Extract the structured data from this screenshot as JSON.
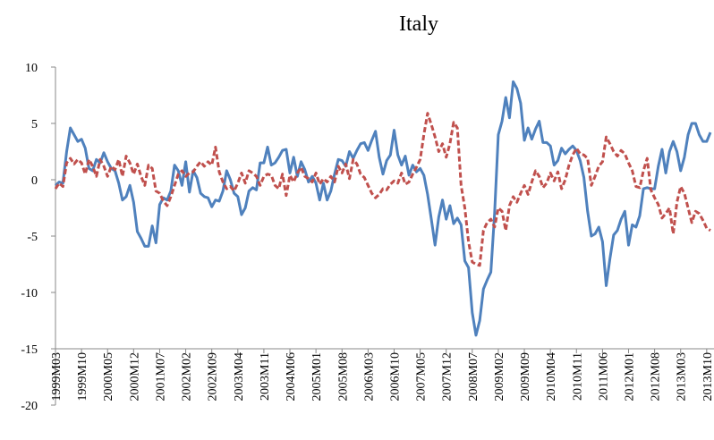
{
  "chart_data": {
    "type": "line",
    "title": "Italy",
    "categories": [
      "1999M03",
      null,
      null,
      null,
      null,
      null,
      null,
      "1999M10",
      null,
      null,
      null,
      null,
      null,
      null,
      "2000M05",
      null,
      null,
      null,
      null,
      null,
      null,
      "2000M12",
      null,
      null,
      null,
      null,
      null,
      null,
      "2001M07",
      null,
      null,
      null,
      null,
      null,
      null,
      "2002M02",
      null,
      null,
      null,
      null,
      null,
      null,
      "2002M09",
      null,
      null,
      null,
      null,
      null,
      null,
      "2003M04",
      null,
      null,
      null,
      null,
      null,
      null,
      "2003M11",
      null,
      null,
      null,
      null,
      null,
      null,
      "2004M06",
      null,
      null,
      null,
      null,
      null,
      null,
      "2005M01",
      null,
      null,
      null,
      null,
      null,
      null,
      "2005M08",
      null,
      null,
      null,
      null,
      null,
      null,
      "2006M03",
      null,
      null,
      null,
      null,
      null,
      null,
      "2006M10",
      null,
      null,
      null,
      null,
      null,
      null,
      "2007M05",
      null,
      null,
      null,
      null,
      null,
      null,
      "2007M12",
      null,
      null,
      null,
      null,
      null,
      null,
      "2008M07",
      null,
      null,
      null,
      null,
      null,
      null,
      "2009M02",
      null,
      null,
      null,
      null,
      null,
      null,
      "2009M09",
      null,
      null,
      null,
      null,
      null,
      null,
      "2010M04",
      null,
      null,
      null,
      null,
      null,
      null,
      "2010M11",
      null,
      null,
      null,
      null,
      null,
      null,
      "2011M06",
      null,
      null,
      null,
      null,
      null,
      null,
      "2012M01",
      null,
      null,
      null,
      null,
      null,
      null,
      "2012M08",
      null,
      null,
      null,
      null,
      null,
      null,
      "2013M03",
      null,
      null,
      null,
      null,
      null,
      null,
      "2013M10",
      null
    ],
    "series": [
      {
        "color": "#4f81bd",
        "dash": false,
        "values": [
          -0.5,
          -0.2,
          -0.3,
          2.5,
          4.6,
          4.0,
          3.4,
          3.6,
          2.8,
          1.0,
          0.8,
          1.8,
          1.5,
          2.4,
          1.6,
          1.0,
          0.8,
          -0.3,
          -1.8,
          -1.5,
          -0.5,
          -2.0,
          -4.6,
          -5.2,
          -5.9,
          -5.9,
          -4.1,
          -5.6,
          -2.2,
          -1.6,
          -1.8,
          -1.0,
          1.3,
          0.8,
          -0.5,
          1.6,
          -1.1,
          0.8,
          0.2,
          -1.2,
          -1.5,
          -1.6,
          -2.4,
          -1.8,
          -1.9,
          -1.0,
          0.8,
          0,
          -1.2,
          -1.5,
          -3.1,
          -2.5,
          -1.0,
          -0.7,
          -0.9,
          1.5,
          1.5,
          2.9,
          1.3,
          1.5,
          2.0,
          2.6,
          2.7,
          0.6,
          2.0,
          0.3,
          1.6,
          0.9,
          -0.2,
          0.3,
          -0.3,
          -1.8,
          -0.3,
          -1.8,
          -1.0,
          0.5,
          1.8,
          1.7,
          1.2,
          2.5,
          1.9,
          2.6,
          3.2,
          3.3,
          2.6,
          3.5,
          4.3,
          2.0,
          0.5,
          1.7,
          2.2,
          4.4,
          2.2,
          1.3,
          2.1,
          0.4,
          1.3,
          0.7,
          1.0,
          0.4,
          -1.3,
          -3.5,
          -5.8,
          -3.3,
          -1.8,
          -3.5,
          -2.3,
          -3.9,
          -3.4,
          -4.0,
          -7.2,
          -7.8,
          -11.8,
          -13.8,
          -12.5,
          -9.7,
          -8.9,
          -8.2,
          -3.0,
          4.0,
          5.2,
          7.3,
          5.5,
          8.7,
          8.1,
          6.8,
          3.5,
          4.6,
          3.6,
          4.5,
          5.2,
          3.3,
          3.3,
          3.0,
          1.3,
          1.7,
          2.8,
          2.3,
          2.7,
          3.0,
          2.6,
          1.7,
          0.2,
          -2.8,
          -5.0,
          -4.8,
          -4.2,
          -5.5,
          -9.4,
          -7.0,
          -4.9,
          -4.5,
          -3.5,
          -2.8,
          -5.8,
          -4.0,
          -4.2,
          -3.2,
          -0.8,
          -0.7,
          -0.8,
          -0.8,
          1.2,
          2.7,
          0.6,
          2.5,
          3.4,
          2.5,
          0.8,
          2.0,
          4.0,
          5.0,
          5.0,
          4.0,
          3.4,
          3.4,
          4.2
        ]
      },
      {
        "color": "#c0504d",
        "dash": true,
        "values": [
          -0.8,
          -0.3,
          -0.6,
          1.5,
          1.9,
          1.4,
          1.8,
          1.5,
          0.5,
          1.8,
          1.2,
          0.3,
          1.8,
          1.2,
          0.3,
          1.2,
          0.9,
          1.8,
          0.3,
          2.1,
          1.5,
          0.5,
          1.4,
          0.3,
          -0.5,
          1.3,
          1.0,
          -1.0,
          -1.2,
          -1.9,
          -2.3,
          -1.5,
          -0.5,
          0.5,
          0.8,
          0.3,
          0.6,
          0.7,
          1.2,
          1.6,
          1.2,
          1.6,
          1.3,
          2.9,
          0.7,
          -0.2,
          -0.8,
          -0.6,
          -1.0,
          -0.3,
          0.6,
          -0.3,
          0.8,
          0.6,
          0.3,
          -0.5,
          0.3,
          0.5,
          0.4,
          -0.5,
          -0.8,
          0.5,
          -1.4,
          0.4,
          -0.2,
          0.6,
          1.1,
          0.3,
          0.1,
          -0.2,
          0.6,
          -0.4,
          0.1,
          -0.2,
          0.3,
          -0.2,
          1.2,
          0.6,
          1.4,
          0.1,
          1.8,
          1.4,
          0.5,
          0.2,
          -0.5,
          -1.2,
          -1.6,
          -1.3,
          -0.8,
          -0.9,
          -0.4,
          -0.1,
          -0.3,
          0.6,
          -0.4,
          -0.2,
          0.5,
          1.1,
          1.8,
          4.0,
          5.9,
          4.9,
          3.8,
          2.5,
          3.2,
          2.0,
          3.2,
          5.1,
          4.6,
          -0.5,
          -2.5,
          -5.5,
          -7.3,
          -7.5,
          -7.6,
          -4.5,
          -3.8,
          -3.5,
          -4.2,
          -2.5,
          -2.8,
          -4.5,
          -2.3,
          -1.5,
          -2.0,
          -1.2,
          -0.5,
          -1.3,
          -0.2,
          0.8,
          0.3,
          -0.7,
          -0.3,
          0.6,
          -0.1,
          0.7,
          -0.8,
          0,
          1.3,
          2.2,
          2.8,
          2.3,
          2.2,
          1.9,
          -0.5,
          0.3,
          1.2,
          1.6,
          3.8,
          3.2,
          2.5,
          2.1,
          2.6,
          2.3,
          1.5,
          0.8,
          -0.6,
          -0.7,
          0.8,
          1.9,
          -0.9,
          -1.6,
          -2.2,
          -3.4,
          -3.0,
          -2.5,
          -4.8,
          -2.0,
          -0.6,
          -1.2,
          -2.5,
          -3.8,
          -2.8,
          -3.0,
          -3.6,
          -4.3,
          -4.5
        ]
      }
    ],
    "ylim": [
      -20,
      10
    ],
    "yticks": [
      -20,
      -15,
      -10,
      -5,
      0,
      5,
      10
    ],
    "xaxis_at": -15
  }
}
